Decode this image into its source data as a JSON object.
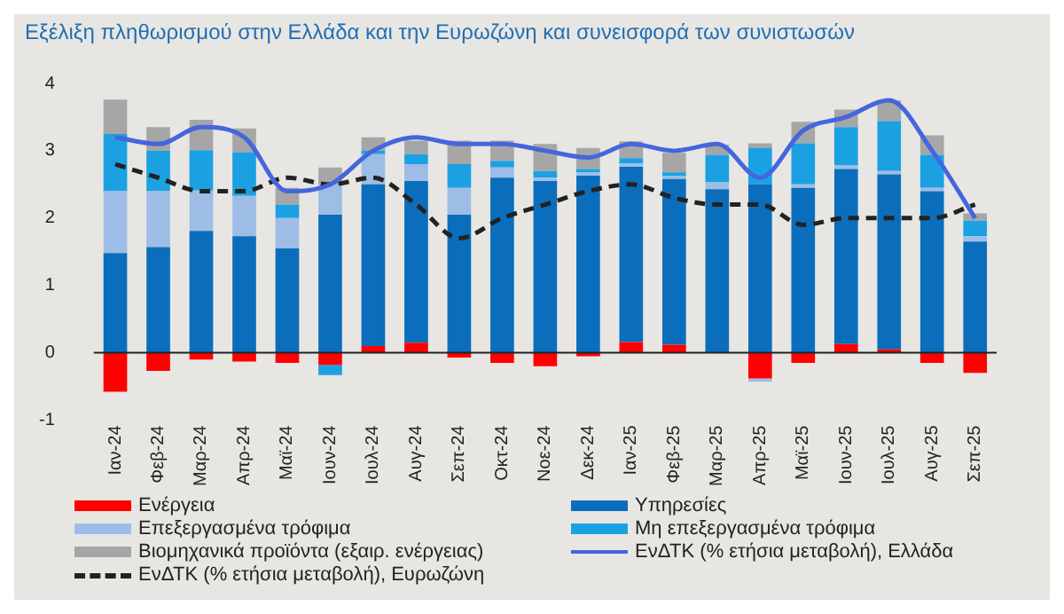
{
  "chart_data": {
    "type": "bar",
    "title": "Εξέλιξη πληθωρισμού στην Ελλάδα και την Ευρωζώνη και συνεισφορά των συνιστωσών",
    "stacked": true,
    "legend": "bottom",
    "ylim": [
      -1,
      4
    ],
    "yticks": [
      -1,
      0,
      1,
      2,
      3,
      4
    ],
    "categories": [
      "Ιαν-24",
      "Φεβ-24",
      "Μαρ-24",
      "Απρ-24",
      "Μαϊ-24",
      "Ιουν-24",
      "Ιουλ-24",
      "Αυγ-24",
      "Σεπ-24",
      "Οκτ-24",
      "Νοε-24",
      "Δεκ-24",
      "Ιαν-25",
      "Φεβ-25",
      "Μαρ-25",
      "Απρ-25",
      "Μαϊ-25",
      "Ιουν-25",
      "Ιουλ-25",
      "Αυγ-25",
      "Σεπ-25"
    ],
    "series": [
      {
        "name": "Ενέργεια",
        "color": "#ff0000",
        "values": [
          -0.58,
          -0.27,
          -0.1,
          -0.13,
          -0.15,
          -0.18,
          0.1,
          0.15,
          -0.07,
          -0.15,
          -0.2,
          -0.05,
          0.16,
          0.12,
          0,
          -0.38,
          -0.15,
          0.13,
          0.05,
          -0.15,
          -0.3
        ]
      },
      {
        "name": "Υπηρεσίες",
        "color": "#0a6ebd",
        "values": [
          1.48,
          1.57,
          1.81,
          1.73,
          1.55,
          2.05,
          2.4,
          2.4,
          2.05,
          2.6,
          2.55,
          2.63,
          2.6,
          2.46,
          2.43,
          2.5,
          2.45,
          2.6,
          2.6,
          2.4,
          1.65
        ]
      },
      {
        "name": "Επεξεργασμένα τρόφιμα",
        "color": "#9dbde6",
        "values": [
          0.92,
          0.83,
          0.6,
          0.6,
          0.45,
          0.45,
          0.45,
          0.25,
          0.4,
          0.15,
          0.05,
          0.05,
          0.05,
          0.05,
          0.1,
          -0.05,
          0.05,
          0.05,
          0.05,
          0.05,
          0.08
        ]
      },
      {
        "name": "Μη επεξεργασμένα τρόφιμα",
        "color": "#1ba1e2",
        "values": [
          0.85,
          0.6,
          0.6,
          0.65,
          0.2,
          -0.15,
          0.05,
          0.15,
          0.35,
          0.1,
          0.1,
          0.05,
          0.08,
          0.05,
          0.41,
          0.54,
          0.61,
          0.57,
          0.74,
          0.49,
          0.23
        ]
      },
      {
        "name": "Βιομηχανικά προϊόντα (εξαιρ. ενέργειας)",
        "color": "#a6a6a6",
        "values": [
          0.51,
          0.35,
          0.45,
          0.35,
          0.25,
          0.25,
          0.2,
          0.2,
          0.35,
          0.3,
          0.4,
          0.31,
          0.25,
          0.29,
          0.15,
          0.07,
          0.32,
          0.26,
          0.31,
          0.29,
          0.11
        ]
      },
      {
        "name": "ΕνΔΤΚ (% ετήσια μεταβολή), Ελλάδα",
        "type": "line",
        "color": "#4466dd",
        "line_style": "solid",
        "values": [
          3.2,
          3.1,
          3.35,
          3.2,
          2.4,
          2.5,
          3.0,
          3.2,
          3.1,
          3.1,
          3.0,
          2.9,
          3.1,
          3.0,
          3.1,
          2.6,
          3.3,
          3.5,
          3.75,
          3.0,
          2.0
        ]
      },
      {
        "name": "ΕνΔΤΚ (% ετήσια μεταβολή), Ευρωζώνη",
        "type": "line",
        "color": "#222222",
        "line_style": "dashed",
        "values": [
          2.8,
          2.6,
          2.4,
          2.4,
          2.6,
          2.5,
          2.6,
          2.2,
          1.7,
          2.0,
          2.2,
          2.4,
          2.5,
          2.3,
          2.2,
          2.2,
          1.9,
          2.0,
          2.0,
          2.0,
          2.2
        ]
      }
    ]
  }
}
